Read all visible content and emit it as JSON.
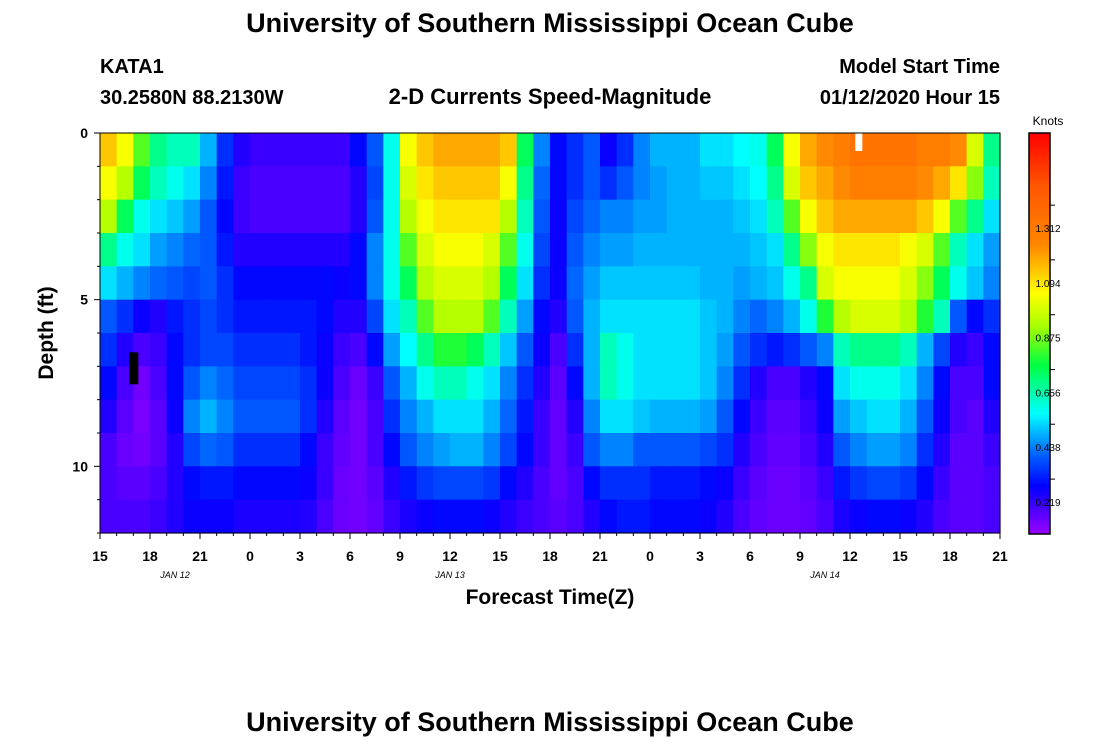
{
  "page": {
    "title_top": "University of Southern Mississippi Ocean Cube",
    "title_bottom": "University of Southern Mississippi Ocean Cube",
    "station_id": "KATA1",
    "station_coords": "30.2580N 88.2130W",
    "subtitle": "2-D Currents Speed-Magnitude",
    "model_start_label": "Model Start Time",
    "model_start_value": "01/12/2020 Hour 15"
  },
  "chart_data": {
    "type": "heatmap",
    "title": "2-D Currents Speed-Magnitude",
    "xlabel": "Forecast Time(Z)",
    "ylabel": "Depth (ft)",
    "colorbar_label": "Knots",
    "x_range_hours": [
      0,
      54
    ],
    "x_step_hours": 1,
    "depth_range_ft": [
      0,
      12
    ],
    "depth_step_ft": 1,
    "value_range_knots": [
      0,
      1.6
    ],
    "x_ticks": [
      {
        "hour": 0,
        "label": "15"
      },
      {
        "hour": 3,
        "label": "18"
      },
      {
        "hour": 6,
        "label": "21"
      },
      {
        "hour": 9,
        "label": "0"
      },
      {
        "hour": 12,
        "label": "3"
      },
      {
        "hour": 15,
        "label": "6"
      },
      {
        "hour": 18,
        "label": "9"
      },
      {
        "hour": 21,
        "label": "12"
      },
      {
        "hour": 24,
        "label": "15"
      },
      {
        "hour": 27,
        "label": "18"
      },
      {
        "hour": 30,
        "label": "21"
      },
      {
        "hour": 33,
        "label": "0"
      },
      {
        "hour": 36,
        "label": "3"
      },
      {
        "hour": 39,
        "label": "6"
      },
      {
        "hour": 42,
        "label": "9"
      },
      {
        "hour": 45,
        "label": "12"
      },
      {
        "hour": 48,
        "label": "15"
      },
      {
        "hour": 51,
        "label": "18"
      },
      {
        "hour": 54,
        "label": "21"
      }
    ],
    "date_labels": [
      {
        "hour": 4.5,
        "label": "JAN 12"
      },
      {
        "hour": 21,
        "label": "JAN 13"
      },
      {
        "hour": 43.5,
        "label": "JAN 14"
      }
    ],
    "y_ticks": [
      {
        "depth": 0,
        "label": "0"
      },
      {
        "depth": 5,
        "label": "5"
      },
      {
        "depth": 10,
        "label": "10"
      }
    ],
    "colorbar_ticks": [
      {
        "value": 0.219,
        "label": "0.219"
      },
      {
        "value": 0.438,
        "label": "0.438"
      },
      {
        "value": 0.656,
        "label": "0.656"
      },
      {
        "value": 0.875,
        "label": "0.875"
      },
      {
        "value": 1.094,
        "label": "1.094"
      },
      {
        "value": 1.312,
        "label": "1.312"
      }
    ],
    "speed_grid": [
      [
        1.05,
        0.95,
        0.75,
        0.6,
        0.55,
        0.55,
        0.4,
        0.25,
        0.15,
        0.12,
        0.12,
        0.12,
        0.12,
        0.12,
        0.12,
        0.2,
        0.3,
        0.5,
        0.95,
        1.05,
        1.1,
        1.1,
        1.1,
        1.1,
        1.05,
        0.65,
        0.35,
        0.2,
        0.25,
        0.3,
        0.18,
        0.25,
        0.35,
        0.4,
        0.4,
        0.4,
        0.45,
        0.45,
        0.48,
        0.5,
        0.65,
        0.95,
        1.1,
        1.15,
        1.2,
        1.25,
        1.25,
        1.25,
        1.25,
        1.2,
        1.2,
        1.15,
        0.9,
        0.6
      ],
      [
        0.95,
        0.85,
        0.65,
        0.55,
        0.5,
        0.45,
        0.35,
        0.22,
        0.12,
        0.1,
        0.1,
        0.1,
        0.1,
        0.1,
        0.1,
        0.15,
        0.28,
        0.5,
        0.9,
        1.0,
        1.05,
        1.05,
        1.05,
        1.05,
        0.95,
        0.6,
        0.32,
        0.2,
        0.25,
        0.3,
        0.25,
        0.3,
        0.35,
        0.38,
        0.4,
        0.4,
        0.42,
        0.42,
        0.45,
        0.48,
        0.6,
        0.9,
        1.05,
        1.1,
        1.15,
        1.2,
        1.2,
        1.2,
        1.2,
        1.15,
        1.1,
        1.0,
        0.8,
        0.55
      ],
      [
        0.85,
        0.65,
        0.5,
        0.45,
        0.42,
        0.38,
        0.3,
        0.2,
        0.12,
        0.1,
        0.1,
        0.1,
        0.1,
        0.1,
        0.1,
        0.15,
        0.3,
        0.5,
        0.85,
        0.95,
        1.0,
        1.0,
        1.0,
        1.0,
        0.85,
        0.55,
        0.3,
        0.18,
        0.28,
        0.32,
        0.35,
        0.35,
        0.38,
        0.38,
        0.4,
        0.4,
        0.4,
        0.4,
        0.42,
        0.45,
        0.55,
        0.75,
        0.95,
        1.05,
        1.1,
        1.1,
        1.1,
        1.1,
        1.1,
        1.05,
        0.95,
        0.75,
        0.6,
        0.45
      ],
      [
        0.6,
        0.5,
        0.45,
        0.38,
        0.35,
        0.32,
        0.3,
        0.22,
        0.15,
        0.15,
        0.15,
        0.15,
        0.15,
        0.15,
        0.15,
        0.2,
        0.35,
        0.5,
        0.75,
        0.9,
        0.95,
        0.95,
        0.95,
        0.9,
        0.75,
        0.5,
        0.28,
        0.18,
        0.3,
        0.35,
        0.38,
        0.38,
        0.4,
        0.4,
        0.4,
        0.4,
        0.4,
        0.4,
        0.4,
        0.42,
        0.45,
        0.6,
        0.8,
        0.95,
        1.0,
        1.0,
        1.0,
        1.0,
        0.95,
        0.9,
        0.75,
        0.55,
        0.45,
        0.38
      ],
      [
        0.45,
        0.4,
        0.35,
        0.32,
        0.3,
        0.28,
        0.3,
        0.25,
        0.2,
        0.2,
        0.2,
        0.2,
        0.2,
        0.2,
        0.18,
        0.2,
        0.35,
        0.5,
        0.65,
        0.85,
        0.9,
        0.9,
        0.9,
        0.85,
        0.65,
        0.45,
        0.25,
        0.18,
        0.32,
        0.38,
        0.42,
        0.42,
        0.42,
        0.42,
        0.42,
        0.42,
        0.4,
        0.4,
        0.38,
        0.4,
        0.42,
        0.5,
        0.6,
        0.9,
        0.95,
        0.95,
        0.95,
        0.95,
        0.9,
        0.8,
        0.65,
        0.5,
        0.42,
        0.35
      ],
      [
        0.3,
        0.25,
        0.18,
        0.15,
        0.22,
        0.25,
        0.28,
        0.25,
        0.22,
        0.22,
        0.22,
        0.22,
        0.22,
        0.2,
        0.15,
        0.15,
        0.28,
        0.45,
        0.55,
        0.75,
        0.85,
        0.85,
        0.85,
        0.75,
        0.55,
        0.38,
        0.2,
        0.15,
        0.3,
        0.4,
        0.45,
        0.45,
        0.45,
        0.45,
        0.45,
        0.45,
        0.42,
        0.4,
        0.35,
        0.32,
        0.35,
        0.4,
        0.5,
        0.7,
        0.85,
        0.9,
        0.9,
        0.9,
        0.85,
        0.7,
        0.55,
        0.3,
        0.2,
        0.25
      ],
      [
        0.25,
        0.15,
        0.1,
        0.12,
        0.2,
        0.25,
        0.28,
        0.28,
        0.25,
        0.25,
        0.25,
        0.25,
        0.22,
        0.18,
        0.12,
        0.1,
        0.2,
        0.38,
        0.48,
        0.6,
        0.7,
        0.7,
        0.65,
        0.55,
        0.42,
        0.3,
        0.18,
        0.1,
        0.25,
        0.4,
        0.55,
        0.5,
        0.45,
        0.45,
        0.45,
        0.45,
        0.42,
        0.38,
        0.3,
        0.25,
        0.22,
        0.25,
        0.3,
        0.35,
        0.55,
        0.6,
        0.6,
        0.6,
        0.55,
        0.4,
        0.28,
        0.15,
        0.12,
        0.2
      ],
      [
        0.2,
        0.1,
        0.05,
        0.1,
        0.2,
        0.3,
        0.35,
        0.32,
        0.28,
        0.28,
        0.28,
        0.28,
        0.25,
        0.18,
        0.1,
        0.06,
        0.12,
        0.3,
        0.4,
        0.5,
        0.55,
        0.55,
        0.5,
        0.45,
        0.35,
        0.25,
        0.15,
        0.08,
        0.2,
        0.4,
        0.55,
        0.5,
        0.45,
        0.45,
        0.45,
        0.45,
        0.42,
        0.35,
        0.25,
        0.15,
        0.1,
        0.1,
        0.15,
        0.2,
        0.45,
        0.5,
        0.5,
        0.5,
        0.45,
        0.35,
        0.2,
        0.1,
        0.1,
        0.2
      ],
      [
        0.15,
        0.08,
        0.04,
        0.08,
        0.18,
        0.35,
        0.4,
        0.35,
        0.3,
        0.3,
        0.3,
        0.3,
        0.25,
        0.15,
        0.08,
        0.05,
        0.1,
        0.25,
        0.35,
        0.4,
        0.45,
        0.45,
        0.45,
        0.4,
        0.32,
        0.22,
        0.12,
        0.07,
        0.15,
        0.35,
        0.45,
        0.45,
        0.42,
        0.4,
        0.4,
        0.4,
        0.38,
        0.3,
        0.2,
        0.12,
        0.08,
        0.08,
        0.12,
        0.18,
        0.38,
        0.42,
        0.45,
        0.45,
        0.4,
        0.3,
        0.18,
        0.1,
        0.08,
        0.15
      ],
      [
        0.1,
        0.06,
        0.05,
        0.08,
        0.15,
        0.28,
        0.32,
        0.3,
        0.25,
        0.25,
        0.25,
        0.25,
        0.2,
        0.12,
        0.07,
        0.05,
        0.1,
        0.2,
        0.3,
        0.35,
        0.38,
        0.4,
        0.4,
        0.35,
        0.28,
        0.2,
        0.12,
        0.07,
        0.12,
        0.3,
        0.35,
        0.35,
        0.3,
        0.3,
        0.3,
        0.3,
        0.28,
        0.25,
        0.15,
        0.1,
        0.07,
        0.07,
        0.1,
        0.15,
        0.3,
        0.35,
        0.38,
        0.38,
        0.35,
        0.25,
        0.15,
        0.08,
        0.08,
        0.12
      ],
      [
        0.1,
        0.08,
        0.08,
        0.1,
        0.15,
        0.2,
        0.22,
        0.22,
        0.2,
        0.2,
        0.2,
        0.2,
        0.18,
        0.12,
        0.06,
        0.05,
        0.08,
        0.15,
        0.22,
        0.26,
        0.28,
        0.28,
        0.28,
        0.26,
        0.2,
        0.15,
        0.1,
        0.07,
        0.1,
        0.2,
        0.25,
        0.25,
        0.25,
        0.22,
        0.22,
        0.22,
        0.2,
        0.18,
        0.12,
        0.08,
        0.06,
        0.06,
        0.08,
        0.12,
        0.22,
        0.26,
        0.28,
        0.28,
        0.26,
        0.2,
        0.12,
        0.08,
        0.08,
        0.1
      ],
      [
        0.1,
        0.1,
        0.1,
        0.12,
        0.15,
        0.18,
        0.18,
        0.18,
        0.16,
        0.16,
        0.16,
        0.16,
        0.15,
        0.1,
        0.06,
        0.05,
        0.07,
        0.12,
        0.16,
        0.18,
        0.2,
        0.2,
        0.2,
        0.18,
        0.15,
        0.12,
        0.1,
        0.08,
        0.1,
        0.15,
        0.2,
        0.22,
        0.22,
        0.2,
        0.2,
        0.2,
        0.18,
        0.15,
        0.1,
        0.07,
        0.06,
        0.06,
        0.07,
        0.1,
        0.16,
        0.18,
        0.2,
        0.2,
        0.18,
        0.15,
        0.1,
        0.08,
        0.08,
        0.1
      ]
    ],
    "anomalies": [
      {
        "type": "white",
        "hour": 45.5,
        "depth": 0
      },
      {
        "type": "black",
        "hour": 2,
        "depth": 7
      }
    ]
  }
}
